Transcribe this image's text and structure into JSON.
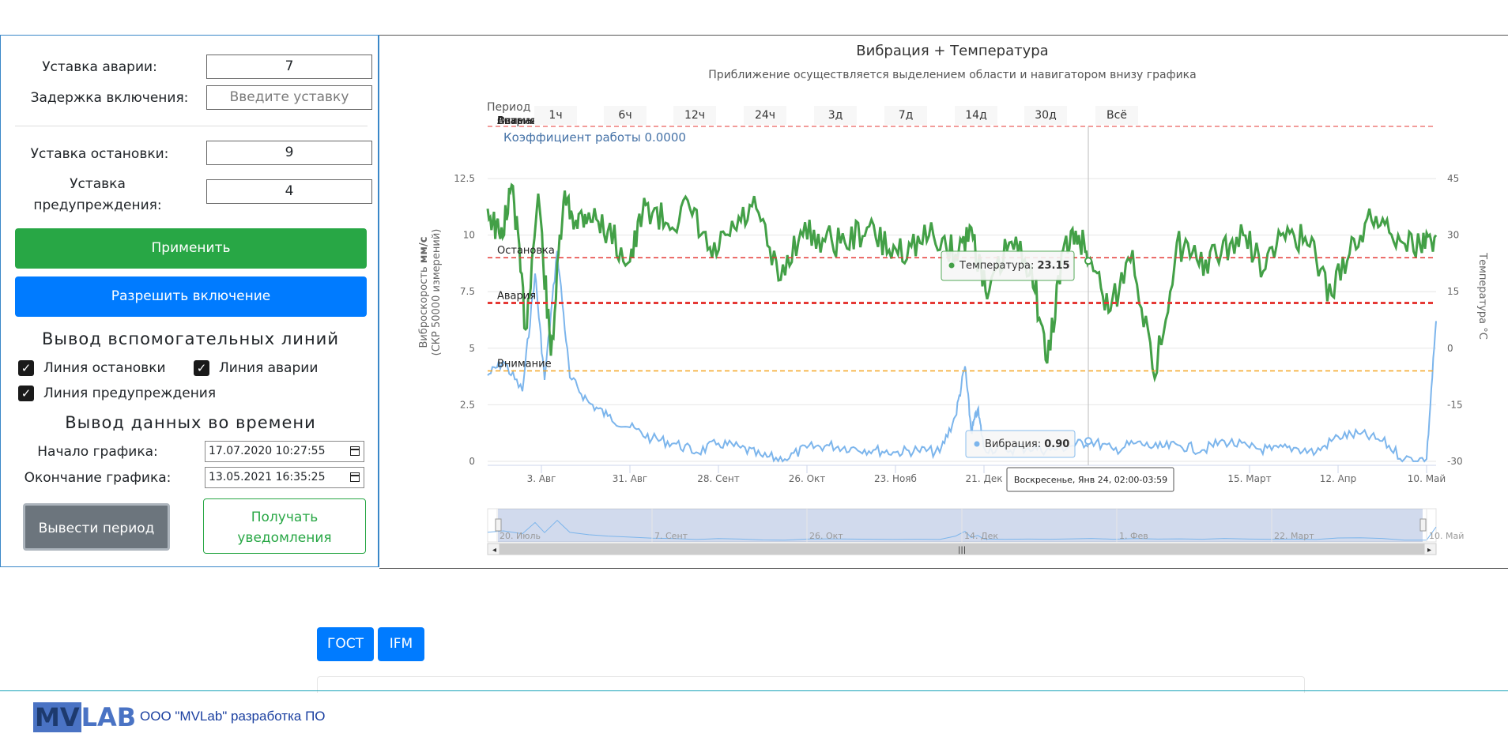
{
  "settings": {
    "alarm_setpoint_label": "Уставка аварии:",
    "alarm_setpoint_value": "7",
    "delay_label": "Задержка включения:",
    "delay_placeholder": "Введите уставку",
    "stop_setpoint_label": "Уставка остановки:",
    "stop_setpoint_value": "9",
    "warning_setpoint_label": "Уставка предупреждения:",
    "warning_setpoint_value": "4",
    "apply_label": "Применить",
    "allow_label": "Разрешить включение"
  },
  "aux_lines": {
    "heading": "Вывод вспомогательных линий",
    "stop_line": "Линия остановки",
    "alarm_line": "Линия аварии",
    "warning_line": "Линия предупреждения",
    "stop_checked": true,
    "alarm_checked": true,
    "warning_checked": true
  },
  "time_output": {
    "heading": "Вывод данных во времени",
    "start_label": "Начало графика:",
    "start_value": "17.07.2020 10:27:55",
    "end_label": "Окончание графика:",
    "end_value": "13.05.2021 16:35:25",
    "show_period_label": "Вывести период",
    "notify_label": "Получать уведомления"
  },
  "chart": {
    "title": "Вибрация + Температура",
    "subtitle": "Приближение осуществляется выделением области и навигатором внизу графика",
    "period_label": "Период",
    "periods": [
      "1ч",
      "6ч",
      "12ч",
      "24ч",
      "3д",
      "7д",
      "14д",
      "30д",
      "Всё"
    ],
    "coef_text": "Коэффициент работы 0.0000",
    "tooltip_temp_label": "Температура:",
    "tooltip_temp_value": "23.15",
    "tooltip_vib_label": "Вибрация:",
    "tooltip_vib_value": "0.90",
    "tooltip_date": "Воскресенье, Янв 24, 02:00-03:59",
    "navigator_labels": [
      "20. Июль",
      "7. Сент",
      "26. Окт",
      "14. Дек",
      "1. Фев",
      "22. Март",
      "10. Май"
    ]
  },
  "chart_data": {
    "type": "line",
    "title": "Вибрация + Температура",
    "subtitle": "Приближение осуществляется выделением области и навигатором внизу графика",
    "ylabel": "Виброскорость мм/с (СКР 50000 измерений)",
    "y2label": "Температура °С",
    "ylim": [
      0,
      12.5
    ],
    "y2lim": [
      -30,
      45
    ],
    "y_ticks": [
      "0",
      "2.5",
      "5",
      "7.5",
      "10",
      "12.5"
    ],
    "y2_ticks": [
      "-30",
      "-15",
      "0",
      "15",
      "30",
      "45"
    ],
    "x_ticks": [
      "3. Авг",
      "31. Авг",
      "28. Сент",
      "26. Окт",
      "23. Нояб",
      "21. Дек",
      "15. Март",
      "12. Апр",
      "10. Май"
    ],
    "plot_lines": [
      {
        "name": "Остановка",
        "value": 9,
        "color": "#e53935"
      },
      {
        "name": "Авария",
        "value": 7,
        "color": "#e53935"
      },
      {
        "name": "Внимание",
        "value": 4,
        "color": "#f5a623"
      }
    ],
    "top_band_labels": [
      "Внимание",
      "Авария",
      "Остановка"
    ],
    "series": [
      {
        "name": "Вибрация",
        "axis": "left",
        "color": "#7cb5ec",
        "x": [
          "2020-07-17",
          "2020-07-22",
          "2020-07-28",
          "2020-08-01",
          "2020-08-04",
          "2020-08-08",
          "2020-08-12",
          "2020-08-18",
          "2020-08-24",
          "2020-08-31",
          "2020-09-07",
          "2020-09-14",
          "2020-09-21",
          "2020-09-28",
          "2020-10-05",
          "2020-10-12",
          "2020-10-19",
          "2020-10-26",
          "2020-11-02",
          "2020-11-09",
          "2020-11-16",
          "2020-11-23",
          "2020-11-30",
          "2020-12-07",
          "2020-12-12",
          "2020-12-15",
          "2020-12-17",
          "2020-12-19",
          "2020-12-21",
          "2020-12-28",
          "2021-01-04",
          "2021-01-11",
          "2021-01-18",
          "2021-01-24",
          "2021-01-31",
          "2021-02-07",
          "2021-02-14",
          "2021-02-21",
          "2021-02-28",
          "2021-03-07",
          "2021-03-15",
          "2021-03-22",
          "2021-03-29",
          "2021-04-05",
          "2021-04-12",
          "2021-04-19",
          "2021-04-26",
          "2021-05-03",
          "2021-05-10",
          "2021-05-13"
        ],
        "values": [
          3.8,
          4.4,
          3.1,
          8.3,
          3.6,
          9.3,
          3.7,
          2.6,
          2.0,
          1.5,
          1.0,
          0.8,
          0.4,
          0.8,
          0.6,
          0.2,
          0.1,
          0.6,
          0.7,
          0.6,
          0.5,
          0.4,
          0.5,
          0.4,
          2.0,
          4.2,
          1.3,
          2.3,
          0.6,
          0.5,
          0.6,
          0.5,
          0.7,
          0.9,
          0.5,
          0.8,
          0.6,
          0.7,
          0.5,
          0.9,
          0.6,
          0.5,
          0.6,
          0.4,
          1.1,
          1.2,
          0.9,
          0.1,
          0.1,
          6.2
        ]
      },
      {
        "name": "Температура",
        "axis": "right",
        "color": "#43a047",
        "x": [
          "2020-07-17",
          "2020-07-21",
          "2020-07-25",
          "2020-07-29",
          "2020-08-02",
          "2020-08-06",
          "2020-08-10",
          "2020-08-14",
          "2020-08-18",
          "2020-08-24",
          "2020-08-31",
          "2020-09-05",
          "2020-09-12",
          "2020-09-19",
          "2020-09-26",
          "2020-10-03",
          "2020-10-10",
          "2020-10-17",
          "2020-10-24",
          "2020-10-31",
          "2020-11-07",
          "2020-11-14",
          "2020-11-21",
          "2020-11-28",
          "2020-12-05",
          "2020-12-12",
          "2020-12-17",
          "2020-12-22",
          "2020-12-29",
          "2021-01-05",
          "2021-01-10",
          "2021-01-15",
          "2021-01-20",
          "2021-01-24",
          "2021-01-30",
          "2021-02-06",
          "2021-02-13",
          "2021-02-20",
          "2021-02-27",
          "2021-03-06",
          "2021-03-13",
          "2021-03-20",
          "2021-03-27",
          "2021-04-03",
          "2021-04-10",
          "2021-04-17",
          "2021-04-24",
          "2021-05-01",
          "2021-05-08",
          "2021-05-13"
        ],
        "values": [
          37,
          29,
          43,
          5,
          41,
          -2,
          39,
          34,
          36,
          31,
          23,
          38,
          33,
          37,
          24,
          32,
          37,
          18,
          31,
          29,
          28,
          32,
          26,
          27,
          30,
          25,
          32,
          13,
          28,
          22,
          -4,
          26,
          30,
          23,
          10,
          26,
          -8,
          28,
          22,
          25,
          30,
          21,
          32,
          27,
          14,
          29,
          35,
          30,
          27,
          30
        ]
      }
    ],
    "grid": true,
    "legend": "none"
  },
  "tabs": {
    "gost": "ГОСТ",
    "ifm": "IFM"
  },
  "footer": {
    "logo_a": "MV",
    "logo_b": "LAB",
    "text": "ООО \"MVLab\" разработка ПО"
  }
}
